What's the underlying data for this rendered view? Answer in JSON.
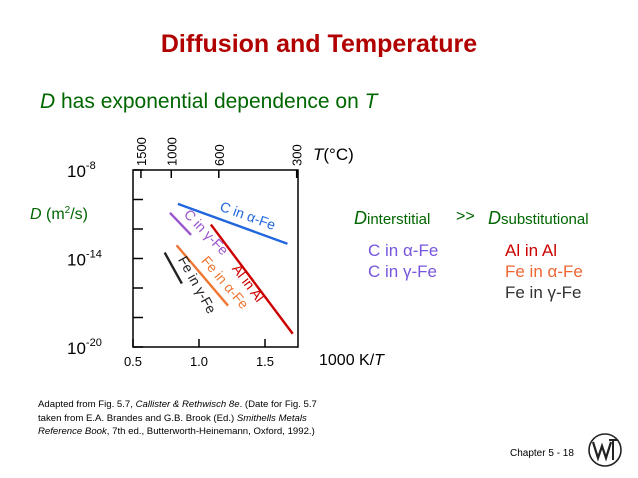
{
  "slide": {
    "title": "Diffusion and Temperature",
    "subtitle_var": "D",
    "subtitle_mid": " has exponential dependence on ",
    "subtitle_end": "T",
    "header_left_var": "D",
    "header_left_sub": "interstitial",
    "header_gg": ">>",
    "header_right_var": "D",
    "header_right_sub": "substitutional",
    "interstitial": [
      "C in α-Fe",
      "C in γ-Fe"
    ],
    "substitutional": [
      {
        "text": "Al in Al",
        "color": "#cc0000"
      },
      {
        "text": "Fe in α-Fe",
        "color": "#ee6633"
      },
      {
        "text": "Fe in γ-Fe",
        "color": "#333333"
      }
    ],
    "caption_1a": "Adapted from Fig. 5.7, ",
    "caption_1b": "Callister & Rethwisch 8e",
    "caption_1c": ".  (Date for Fig. 5.7",
    "caption_2": "taken from E.A. Brandes and G.B. Brook (Ed.) ",
    "caption_2b": "Smithells Metals",
    "caption_3a": "Reference Book",
    "caption_3b": ", 7th ed., Butterworth-Heinemann, Oxford, 1992.)",
    "footer": "Chapter 5 -  18"
  },
  "chart_data": {
    "type": "line",
    "xlabel_pre": "1000",
    "xlabel_unit": "K/",
    "xlabel_var": "T",
    "ylabel_var": "D",
    "ylabel_unit": "(m",
    "ylabel_sup": "2",
    "ylabel_end": "/s)",
    "top_axis_label_var": "T",
    "top_axis_label_unit": "(°C)",
    "xlim": [
      0.5,
      1.75
    ],
    "ylim_exp": [
      -20,
      -8
    ],
    "x_ticks": [
      {
        "value": 0.5,
        "label": "0.5"
      },
      {
        "value": 1.0,
        "label": "1.0"
      },
      {
        "value": 1.5,
        "label": "1.5"
      }
    ],
    "y_ticks": [
      {
        "value": -8,
        "base": "10",
        "exp": "-8"
      },
      {
        "value": -14,
        "base": "10",
        "exp": "-14"
      },
      {
        "value": -20,
        "base": "10",
        "exp": "-20"
      }
    ],
    "y_minor_ticks": [
      -10,
      -12,
      -16,
      -18
    ],
    "top_ticks": [
      {
        "value": 0.56,
        "label": "1500"
      },
      {
        "value": 0.79,
        "label": "1000"
      },
      {
        "value": 1.15,
        "label": "600"
      },
      {
        "value": 1.74,
        "label": "300"
      }
    ],
    "series": [
      {
        "name": "C in α-Fe",
        "color": "#2266dd",
        "x": [
          0.84,
          1.67
        ],
        "y": [
          -10.3,
          -13.0
        ]
      },
      {
        "name": "C in γ-Fe",
        "color": "#9955cc",
        "x": [
          0.78,
          0.94
        ],
        "y": [
          -10.9,
          -12.4
        ]
      },
      {
        "name": "Fe in α-Fe",
        "color": "#ee7733",
        "x": [
          0.83,
          1.22
        ],
        "y": [
          -13.1,
          -17.2
        ]
      },
      {
        "name": "Fe in γ-Fe",
        "color": "#222222",
        "x": [
          0.74,
          0.87
        ],
        "y": [
          -13.6,
          -15.7
        ]
      },
      {
        "name": "Al in Al",
        "color": "#cc0000",
        "x": [
          1.09,
          1.71
        ],
        "y": [
          -11.7,
          -19.1
        ]
      }
    ]
  }
}
